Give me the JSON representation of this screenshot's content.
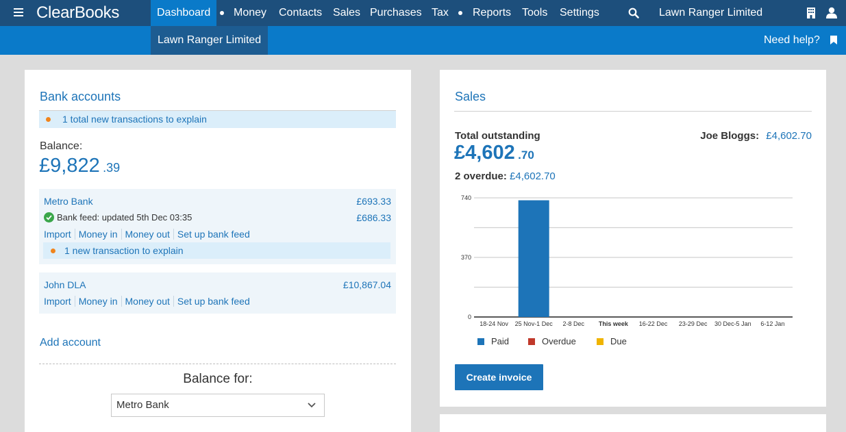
{
  "nav": {
    "logo": "ClearBooks",
    "items": [
      "Dashboard",
      "Money",
      "Contacts",
      "Sales",
      "Purchases",
      "Tax",
      "Reports",
      "Tools",
      "Settings"
    ],
    "org_name": "Lawn Ranger Limited",
    "accent": "#0a7ac9",
    "bar_color": "#1d4f7c"
  },
  "subnav": {
    "org_tab": "Lawn Ranger Limited",
    "help": "Need help?"
  },
  "bank": {
    "title": "Bank accounts",
    "alert": "1 total new transactions to explain",
    "balance_label": "Balance:",
    "balance_main": "£9,822",
    "balance_pence": ".39",
    "accounts": [
      {
        "name": "Metro Bank",
        "amount": "£693.33",
        "feed_status": "Bank feed: updated 5th Dec 03:35",
        "feed_amount": "£686.33",
        "links": [
          "Import",
          "Money in",
          "Money out",
          "Set up bank feed"
        ],
        "alert": "1 new transaction to explain"
      },
      {
        "name": "John DLA",
        "amount": "£10,867.04",
        "links": [
          "Import",
          "Money in",
          "Money out",
          "Set up bank feed"
        ]
      }
    ],
    "add_account": "Add account",
    "balance_for_label": "Balance for:",
    "balance_for_selected": "Metro Bank"
  },
  "sales": {
    "title": "Sales",
    "total_label": "Total outstanding",
    "total_main": "£4,602",
    "total_pence": ".70",
    "overdue_label": "2 overdue:",
    "overdue_amount": "£4,602.70",
    "customer_label": "Joe Bloggs:",
    "customer_amount": "£4,602.70",
    "create_invoice": "Create invoice"
  },
  "chart_data": {
    "type": "bar",
    "categories": [
      "18-24 Nov",
      "25 Nov-1 Dec",
      "2-8 Dec",
      "This week",
      "16-22 Dec",
      "23-29 Dec",
      "30 Dec-5 Jan",
      "6-12 Jan"
    ],
    "series": [
      {
        "name": "Paid",
        "color": "#1d74b8",
        "values": [
          0,
          725,
          0,
          0,
          0,
          0,
          0,
          0
        ]
      },
      {
        "name": "Overdue",
        "color": "#c0392b",
        "values": [
          0,
          0,
          0,
          0,
          0,
          0,
          0,
          0
        ]
      },
      {
        "name": "Due",
        "color": "#f0b400",
        "values": [
          0,
          0,
          0,
          0,
          0,
          0,
          0,
          0
        ]
      }
    ],
    "yticks": [
      "0",
      "370",
      "740"
    ],
    "ylim": [
      0,
      740
    ],
    "bold_category": "This week",
    "grid": true,
    "legend": "bottom"
  }
}
